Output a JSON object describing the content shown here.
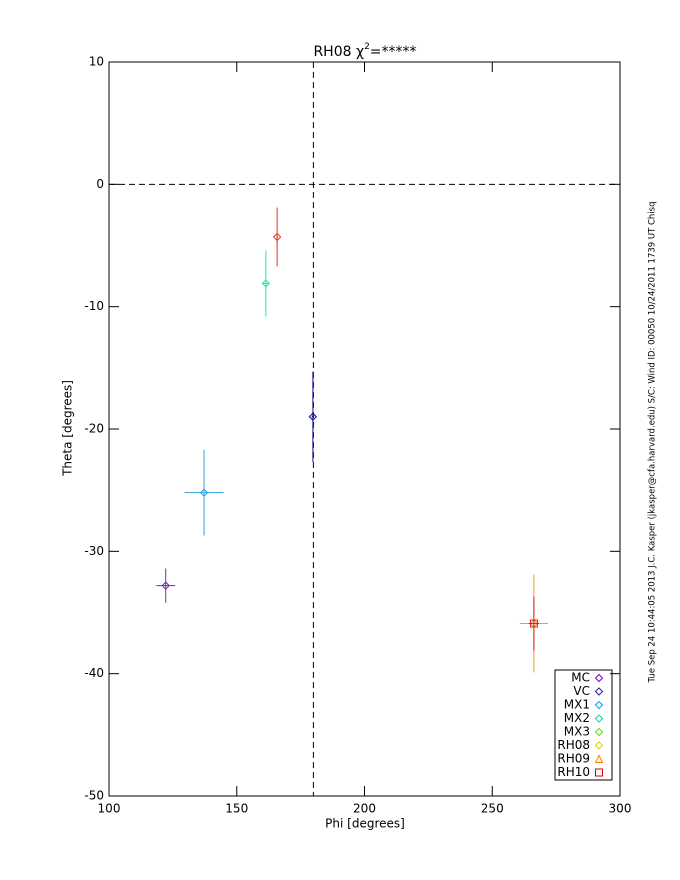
{
  "chart_data": {
    "type": "scatter",
    "title": [
      "RH08 χ",
      "2",
      "=*****"
    ],
    "x_label": "Phi [degrees]",
    "y_label": "Theta [degrees]",
    "side_note": "Tue Sep 24 10:44:05 2013  J.C. Kasper (jkasper@cfa.harvard.edu)  S/C: Wind ID: 00050 10/24/2011  1739 UT Chisq",
    "xlim": [
      100,
      300
    ],
    "ylim": [
      -50,
      10
    ],
    "xticks": [
      100,
      150,
      200,
      250,
      300
    ],
    "yticks": [
      -50,
      -40,
      -30,
      -20,
      -10,
      0,
      10
    ],
    "reference_lines": {
      "x": 180,
      "y": 0
    },
    "points": [
      {
        "x": 122.2,
        "y": -32.8,
        "xerr": 3.7,
        "yerr": 1.4,
        "color": "#7030a0",
        "marker": "diamond"
      },
      {
        "x": 179.8,
        "y": -19.0,
        "xerr": 0.5,
        "yerr": 3.7,
        "color": "#10108a",
        "marker": "diamond"
      },
      {
        "x": 137.2,
        "y": -25.2,
        "xerr": 7.6,
        "yerr": 3.5,
        "color": "#30a0e0",
        "marker": "diamond"
      },
      {
        "x": 161.4,
        "y": -8.1,
        "xerr": 1.0,
        "yerr": 2.7,
        "color": "#30e0b0",
        "marker": "diamond"
      },
      {
        "x": 165.8,
        "y": -4.3,
        "xerr": 0.3,
        "yerr": 2.4,
        "color": "#e03020",
        "marker": "diamond"
      },
      {
        "x": 266.3,
        "y": -35.9,
        "xerr": 5.5,
        "yerr": 4.0,
        "color": "#f0a020",
        "marker": "diamond"
      },
      {
        "x": 266.3,
        "y": -35.9,
        "xerr": 2.0,
        "yerr": 2.2,
        "color": "#e02010",
        "marker": "square"
      }
    ],
    "legend": [
      {
        "name": "MC",
        "color": "#7f00c0",
        "marker": "diamond"
      },
      {
        "name": "VC",
        "color": "#2020a0",
        "marker": "diamond"
      },
      {
        "name": "MX1",
        "color": "#00a8e8",
        "marker": "diamond"
      },
      {
        "name": "MX2",
        "color": "#00e0a0",
        "marker": "diamond"
      },
      {
        "name": "MX3",
        "color": "#60e000",
        "marker": "diamond"
      },
      {
        "name": "RH08",
        "color": "#e0d000",
        "marker": "diamond"
      },
      {
        "name": "RH09",
        "color": "#ff8000",
        "marker": "triangle"
      },
      {
        "name": "RH10",
        "color": "#e00000",
        "marker": "square"
      }
    ]
  }
}
